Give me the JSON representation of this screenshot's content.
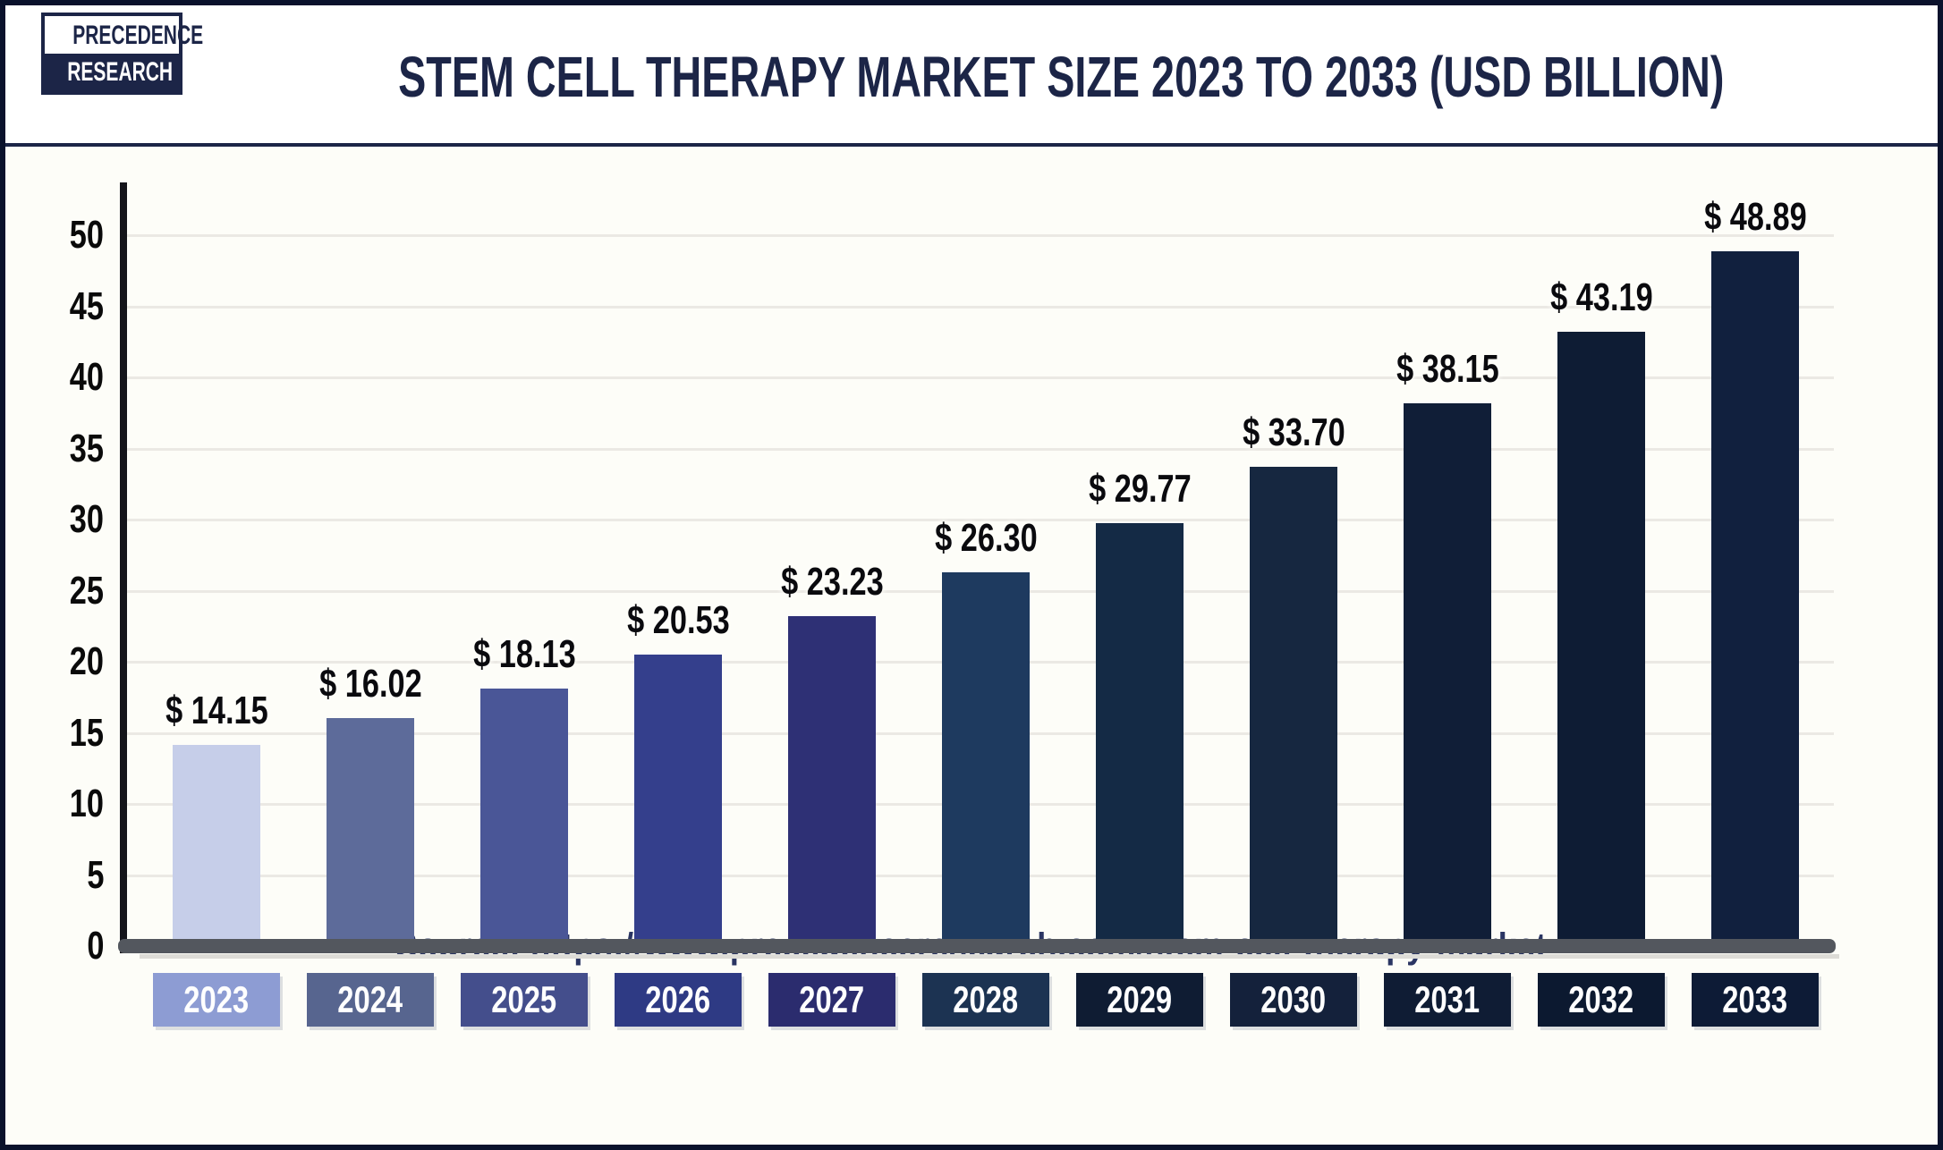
{
  "header": {
    "logo_line1": "PRECEDENCE",
    "logo_line2": "RESEARCH",
    "title": "STEM CELL THERAPY MARKET SIZE 2023 TO 2033 (USD BILLION)"
  },
  "footer": {
    "source": "Source: https://www.precedenceresearch.com/stem-cell-therapy-market"
  },
  "colors": {
    "frame_border": "#0a122c",
    "header_divider": "#1c2547",
    "title_text": "#1c2547",
    "gridline": "#ebe9e4",
    "axis_line": "#14141a",
    "baseline": "#53575e",
    "tick_text": "#0a0a0a",
    "value_text": "#0a0a0e",
    "source_text": "#2a3563",
    "chart_background": "#fdfdf8"
  },
  "chart_data": {
    "type": "bar",
    "title": "STEM CELL THERAPY MARKET SIZE 2023 TO 2033 (USD BILLION)",
    "xlabel": "",
    "ylabel": "",
    "unit": "USD Billion",
    "value_prefix": "$ ",
    "categories": [
      "2023",
      "2024",
      "2025",
      "2026",
      "2027",
      "2028",
      "2029",
      "2030",
      "2031",
      "2032",
      "2033"
    ],
    "values": [
      14.15,
      16.02,
      18.13,
      20.53,
      23.23,
      26.3,
      29.77,
      33.7,
      38.15,
      43.19,
      48.89
    ],
    "value_labels": [
      "$ 14.15",
      "$ 16.02",
      "$ 18.13",
      "$ 20.53",
      "$ 23.23",
      "$ 26.30",
      "$ 29.77",
      "$ 33.70",
      "$ 38.15",
      "$ 43.19",
      "$ 48.89"
    ],
    "bar_colors": [
      "#c6cee9",
      "#5d6b9a",
      "#4a5697",
      "#343f8c",
      "#2e3075",
      "#1e3a5f",
      "#142a45",
      "#162740",
      "#101e37",
      "#0e1c34",
      "#11203e"
    ],
    "year_box_colors": [
      "#8d9cd3",
      "#57658f",
      "#444e8c",
      "#2e3a84",
      "#2b2c6e",
      "#1c3352",
      "#0f1c33",
      "#14213b",
      "#0f1c34",
      "#0c1930",
      "#0d1b36"
    ],
    "y_ticks": [
      0,
      5,
      10,
      15,
      20,
      25,
      30,
      35,
      40,
      45,
      50
    ],
    "ylim": [
      0,
      53
    ],
    "grid": true,
    "legend": null,
    "source": "Source: https://www.precedenceresearch.com/stem-cell-therapy-market"
  }
}
